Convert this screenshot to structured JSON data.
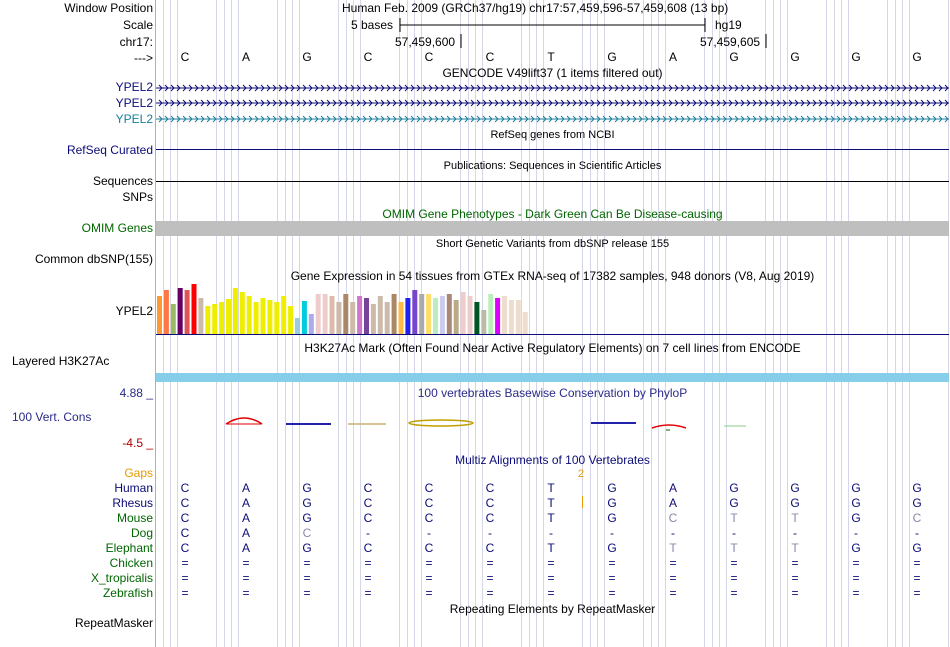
{
  "labels": {
    "window_position": "Window Position",
    "scale": "Scale",
    "chrom": "chr17:",
    "arrow": "--->",
    "ypel2_a": "YPEL2",
    "ypel2_b": "YPEL2",
    "ypel2_c": "YPEL2",
    "refseq_curated": "RefSeq Curated",
    "sequences": "Sequences",
    "snps": "SNPs",
    "omim_genes": "OMIM Genes",
    "common_dbsnp": "Common dbSNP(155)",
    "ypel2_gtex": "YPEL2",
    "layered_h3k27ac": "Layered H3K27Ac",
    "cons_max": "4.88 _",
    "cons_label": "100 Vert. Cons",
    "cons_min": "-4.5 _",
    "gaps": "Gaps",
    "repeatmasker": "RepeatMasker"
  },
  "header": {
    "assembly_position": "Human Feb. 2009 (GRCh37/hg19)   chr17:57,459,596-57,459,608 (13 bp)",
    "scale_text": "5 bases",
    "scale_db": "hg19",
    "coord_left": "57,459,600",
    "coord_right": "57,459,605"
  },
  "sequence_bases": [
    "C",
    "A",
    "G",
    "C",
    "C",
    "C",
    "T",
    "G",
    "A",
    "G",
    "G",
    "G",
    "G"
  ],
  "tracks": {
    "gencode_title": "GENCODE V49lift37 (1 items filtered out)",
    "refseq_title": "RefSeq genes from NCBI",
    "publications_title": "Publications: Sequences in Scientific Articles",
    "omim_title": "OMIM Gene Phenotypes - Dark Green Can Be Disease-causing",
    "dbsnp_title": "Short Genetic Variants from dbSNP release 155",
    "gtex_title": "Gene Expression in 54 tissues from GTEx RNA-seq of 17382 samples, 948 donors (V8, Aug 2019)",
    "h3k27ac_title": "H3K27Ac Mark (Often Found Near Active Regulatory Elements) on 7 cell lines from ENCODE",
    "phylop_title": "100 vertebrates Basewise Conservation by PhyloP",
    "multiz_title": "Multiz Alignments of 100 Vertebrates",
    "repeat_title": "Repeating Elements by RepeatMasker",
    "gaps_count": "2"
  },
  "gtex_values": [
    38,
    44,
    30,
    46,
    44,
    50,
    36,
    28,
    30,
    32,
    35,
    46,
    42,
    38,
    32,
    36,
    34,
    32,
    38,
    28,
    16,
    33,
    20,
    40,
    40,
    38,
    32,
    40,
    32,
    38,
    36,
    30,
    38,
    32,
    40,
    32,
    36,
    44,
    40,
    40,
    36,
    38,
    40,
    34,
    42,
    38,
    32,
    24,
    40,
    36,
    38,
    34,
    34,
    22
  ],
  "gtex_colors": [
    "#ff9933",
    "#ff7744",
    "#99bb66",
    "#660066",
    "#dd5555",
    "#ff0000",
    "#ccbbaa",
    "#eeee00",
    "#eeee00",
    "#eeee00",
    "#eeee00",
    "#eeee00",
    "#eeee00",
    "#eeee00",
    "#eeee00",
    "#eeee00",
    "#eeee00",
    "#eeee00",
    "#eeee00",
    "#eeee00",
    "#99ccdd",
    "#00ccdd",
    "#aaaaee",
    "#eecccc",
    "#eecccc",
    "#ddbbaa",
    "#ccbbaa",
    "#aa8866",
    "#ccbbaa",
    "#cc77cc",
    "#774499",
    "#ccbbaa",
    "#ccbbaa",
    "#ccbbaa",
    "#aa8866",
    "#ffbb44",
    "#2222ee",
    "#7744cc",
    "#aaaaaa",
    "#ffdd66",
    "#bbeebb",
    "#ccccee",
    "#aa8877",
    "#bbaa88",
    "#eecccc",
    "#eecccc",
    "#005522",
    "#bbbbaa",
    "#bbeebb",
    "#dd00ff",
    "#eeddcc",
    "#eeddcc",
    "#eeddcc",
    "#eeddcc"
  ],
  "alignment": {
    "species": [
      "Human",
      "Rhesus",
      "Mouse",
      "Dog",
      "Elephant",
      "Chicken",
      "X_tropicalis",
      "Zebrafish"
    ],
    "rows": [
      [
        "C",
        "A",
        "G",
        "C",
        "C",
        "C",
        "T",
        "G",
        "A",
        "G",
        "G",
        "G",
        "G"
      ],
      [
        "C",
        "A",
        "G",
        "C",
        "C",
        "C",
        "T",
        "G",
        "A",
        "G",
        "G",
        "G",
        "G"
      ],
      [
        "C",
        "A",
        "G",
        "C",
        "C",
        "C",
        "T",
        "G",
        "C",
        "T",
        "T",
        "G",
        "C"
      ],
      [
        "C",
        "A",
        "C",
        "-",
        "-",
        "-",
        "-",
        "-",
        "-",
        "-",
        "-",
        "-",
        "-"
      ],
      [
        "C",
        "A",
        "G",
        "C",
        "C",
        "C",
        "T",
        "G",
        "T",
        "T",
        "T",
        "G",
        "G"
      ],
      [
        "=",
        "=",
        "=",
        "=",
        "=",
        "=",
        "=",
        "=",
        "=",
        "=",
        "=",
        "=",
        "="
      ],
      [
        "=",
        "=",
        "=",
        "=",
        "=",
        "=",
        "=",
        "=",
        "=",
        "=",
        "=",
        "=",
        "="
      ],
      [
        "=",
        "=",
        "=",
        "=",
        "=",
        "=",
        "=",
        "=",
        "=",
        "=",
        "=",
        "=",
        "="
      ]
    ],
    "mismatch_color": "#8888aa"
  },
  "colors": {
    "gencode": "#0c0c78",
    "gencode_alt": "#1a7f9e",
    "omim": "#006600",
    "h3k27ac": "#87ceeb",
    "phylop": "#2a2a88",
    "cons_min": "#aa0000",
    "gaps": "#e69900",
    "species": "#006600",
    "human": "#0c0c78",
    "separator": "#d9a0a0"
  }
}
